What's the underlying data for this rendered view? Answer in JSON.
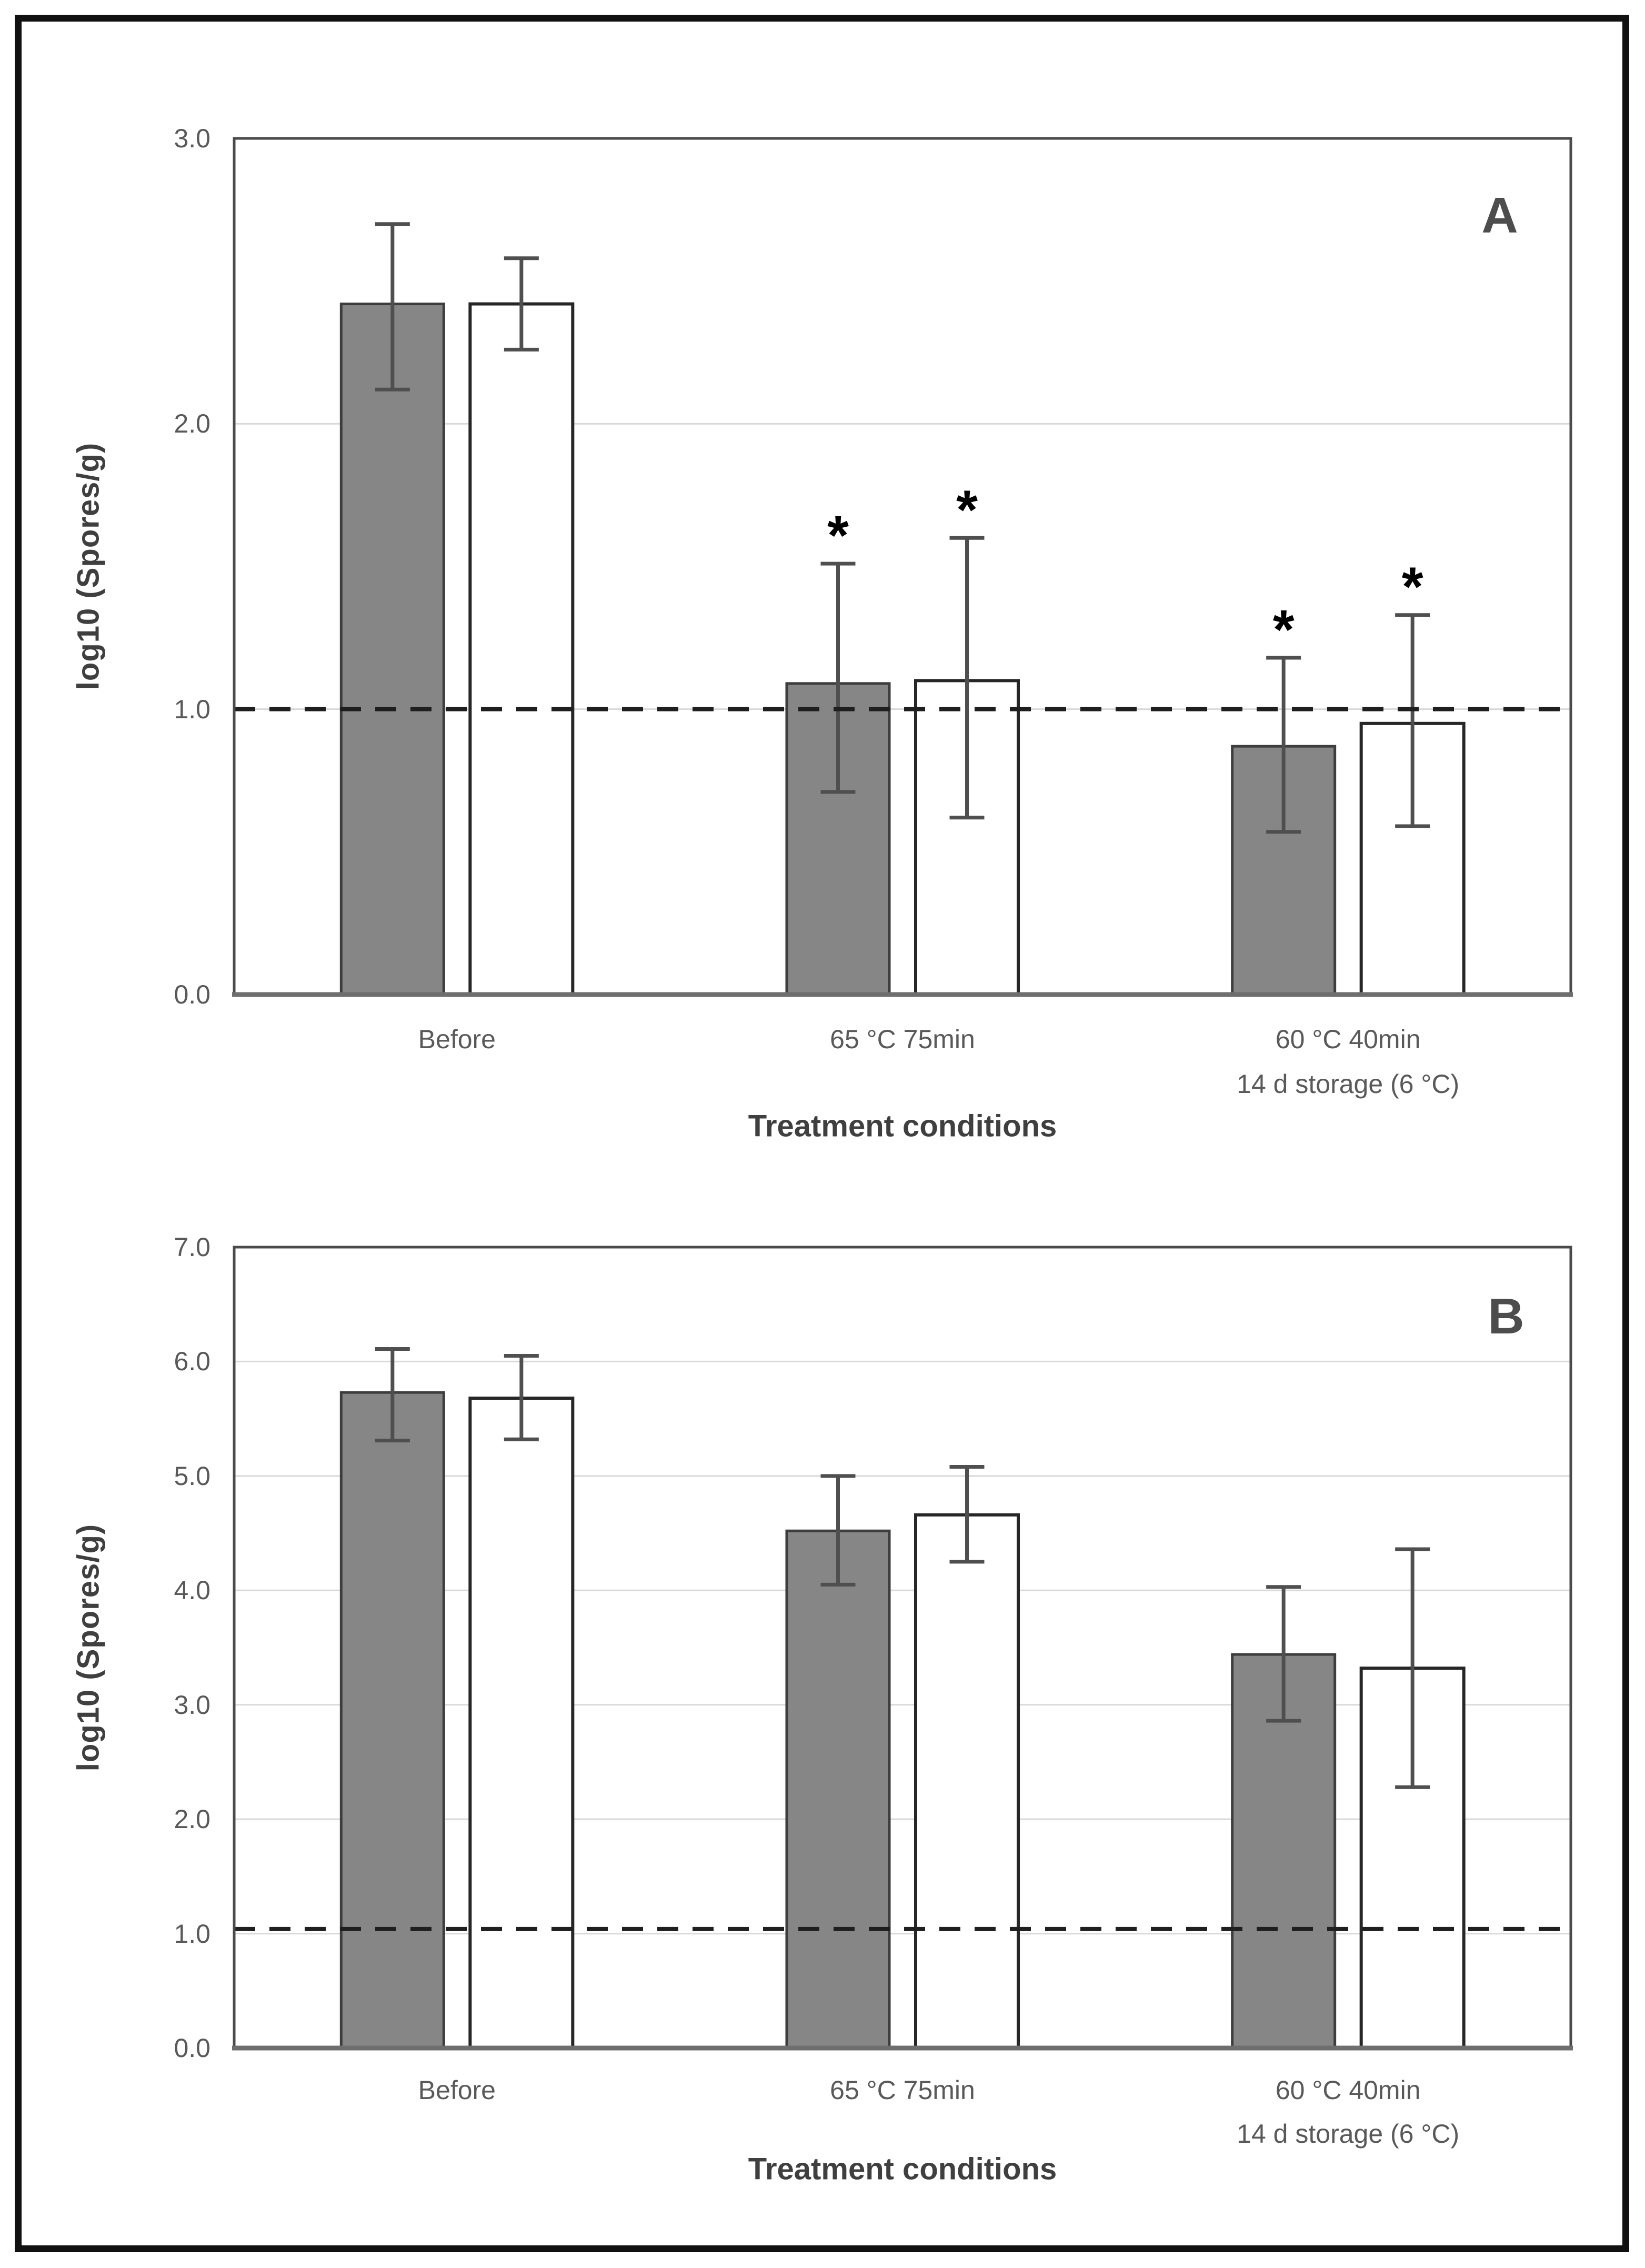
{
  "colors": {
    "grey_bar_fill": "#868686",
    "grey_bar_stroke": "#3d3d3d",
    "white_bar_fill": "#ffffff",
    "white_bar_stroke": "#262626",
    "axis_line": "#6e6e6e",
    "plot_border": "#4a4a4a",
    "gridline": "#d9d9d9",
    "error_bar": "#4f4f4f",
    "reference_line": "#1f1f1f",
    "tick_text": "#595959",
    "title_text": "#3f3f3f",
    "frame": "#111111",
    "asterisk": "#000000"
  },
  "chart_data": [
    {
      "type": "bar",
      "panel_label": "A",
      "title": "",
      "xlabel": "Treatment conditions",
      "ylabel": "log10 (Spores/g)",
      "ylim": [
        0.0,
        3.0
      ],
      "ytick_step": 1.0,
      "ytick_labels": [
        "0.0",
        "1.0",
        "2.0",
        "3.0"
      ],
      "grid": true,
      "legend": "none",
      "reference_line": 1.0,
      "reference_line_style": "dashed",
      "significance_symbol": "*",
      "categories": [
        [
          "Before"
        ],
        [
          "65 °C 75min"
        ],
        [
          "60 °C 40min",
          "14 d storage (6 °C)"
        ]
      ],
      "series": [
        {
          "name": "grey-filled-bars",
          "fill": "#868686",
          "stroke": "#3d3d3d",
          "values": [
            2.42,
            1.09,
            0.87
          ],
          "err_low": [
            2.12,
            0.71,
            0.57
          ],
          "err_high": [
            2.7,
            1.51,
            1.18
          ],
          "asterisk": [
            false,
            true,
            true
          ]
        },
        {
          "name": "white-open-bars",
          "fill": "#ffffff",
          "stroke": "#262626",
          "values": [
            2.42,
            1.1,
            0.95
          ],
          "err_low": [
            2.26,
            0.62,
            0.59
          ],
          "err_high": [
            2.58,
            1.6,
            1.33
          ],
          "asterisk": [
            false,
            true,
            true
          ]
        }
      ]
    },
    {
      "type": "bar",
      "panel_label": "B",
      "title": "",
      "xlabel": "Treatment conditions",
      "ylabel": "log10 (Spores/g)",
      "ylim": [
        0.0,
        7.0
      ],
      "ytick_step": 1.0,
      "ytick_labels": [
        "0.0",
        "1.0",
        "2.0",
        "3.0",
        "4.0",
        "5.0",
        "6.0",
        "7.0"
      ],
      "grid": true,
      "legend": "none",
      "reference_line": 1.04,
      "reference_line_style": "dashed",
      "significance_symbol": "*",
      "categories": [
        [
          "Before"
        ],
        [
          "65 °C 75min"
        ],
        [
          "60 °C 40min",
          "14 d storage (6 °C)"
        ]
      ],
      "series": [
        {
          "name": "grey-filled-bars",
          "fill": "#868686",
          "stroke": "#3d3d3d",
          "values": [
            5.73,
            4.52,
            3.44
          ],
          "err_low": [
            5.31,
            4.05,
            2.86
          ],
          "err_high": [
            6.11,
            5.0,
            4.03
          ],
          "asterisk": [
            false,
            false,
            false
          ]
        },
        {
          "name": "white-open-bars",
          "fill": "#ffffff",
          "stroke": "#262626",
          "values": [
            5.68,
            4.66,
            3.32
          ],
          "err_low": [
            5.32,
            4.25,
            2.28
          ],
          "err_high": [
            6.05,
            5.08,
            4.36
          ],
          "asterisk": [
            false,
            false,
            false
          ]
        }
      ]
    }
  ]
}
